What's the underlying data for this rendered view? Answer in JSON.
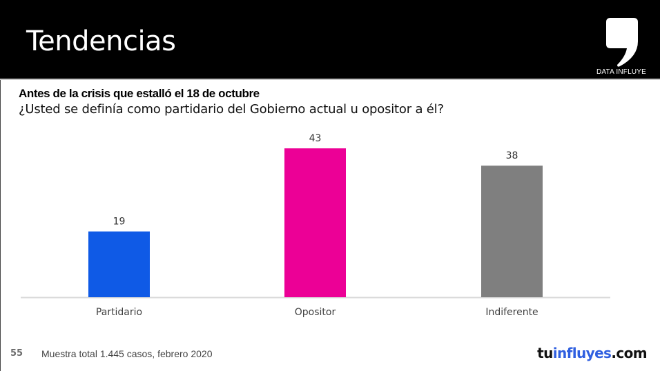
{
  "header": {
    "title": "Tendencias",
    "logo_caption": "DATA INFLUYE",
    "logo_icon": "comma-quote-icon"
  },
  "subtitle": "Antes de la crisis que estalló el 18 de octubre",
  "question": "¿Usted se definía como partidario del Gobierno actual u opositor a él?",
  "footer": {
    "page_number": "55",
    "note": "Muestra total 1.445 casos, febrero 2020",
    "brand": {
      "part1": "tu",
      "part2": "influyes",
      "part3": ".com"
    }
  },
  "colors": {
    "partidario": "#0f5ae6",
    "opositor": "#ec0096",
    "indiferente": "#7f7f7f",
    "baseline": "#d9d9d9",
    "label": "#404040",
    "brand_blue": "#2f5fe0"
  },
  "chart_data": {
    "type": "bar",
    "title": "¿Usted se definía como partidario del Gobierno actual u opositor a él?",
    "xlabel": "",
    "ylabel": "",
    "categories": [
      "Partidario",
      "Opositor",
      "Indiferente"
    ],
    "values": [
      19,
      43,
      38
    ],
    "data_labels": [
      "19",
      "43",
      "38"
    ],
    "bar_colors": [
      "#0f5ae6",
      "#ec0096",
      "#7f7f7f"
    ],
    "ylim": [
      0,
      43
    ],
    "grid": false,
    "legend": "none"
  }
}
